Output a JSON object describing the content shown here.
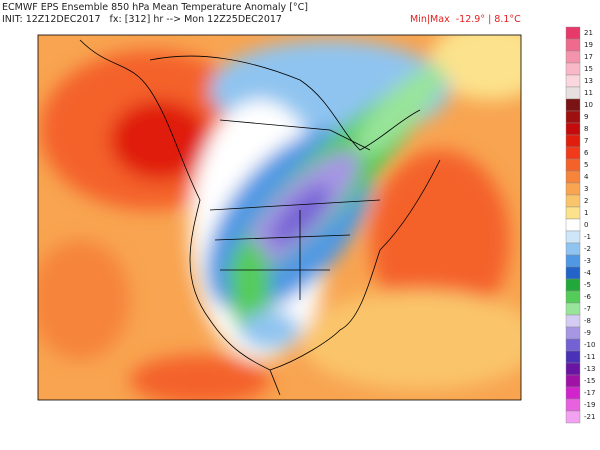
{
  "header": {
    "title": "ECMWF EPS Ensemble 850 hPa Mean Temperature Anomaly [°C]",
    "init": "INIT: 12Z12DEC2017   fx: [312] hr --> Mon 12Z25DEC2017",
    "minmax": "Min|Max  -12.9° | 8.1°C"
  },
  "legend": {
    "levels": [
      {
        "value": 21,
        "color": "#e83a6a"
      },
      {
        "value": 19,
        "color": "#f06a8e"
      },
      {
        "value": 17,
        "color": "#f494ac"
      },
      {
        "value": 15,
        "color": "#f8b8c8"
      },
      {
        "value": 13,
        "color": "#fad6de"
      },
      {
        "value": 11,
        "color": "#e8e0e0"
      },
      {
        "value": 10,
        "color": "#7a1414"
      },
      {
        "value": 9,
        "color": "#9e1010"
      },
      {
        "value": 8,
        "color": "#c40a0a"
      },
      {
        "value": 7,
        "color": "#e01e0e"
      },
      {
        "value": 6,
        "color": "#f03a1a"
      },
      {
        "value": 5,
        "color": "#f4622a"
      },
      {
        "value": 4,
        "color": "#f6843a"
      },
      {
        "value": 3,
        "color": "#f8a450"
      },
      {
        "value": 2,
        "color": "#fac46a"
      },
      {
        "value": 1,
        "color": "#fce28c"
      },
      {
        "value": 0,
        "color": "#ffffff"
      },
      {
        "value": -1,
        "color": "#cfe6f8"
      },
      {
        "value": -2,
        "color": "#8fc4f0"
      },
      {
        "value": -3,
        "color": "#4f98e4"
      },
      {
        "value": -4,
        "color": "#2264c8"
      },
      {
        "value": -5,
        "color": "#22a83a"
      },
      {
        "value": -6,
        "color": "#54cc5a"
      },
      {
        "value": -7,
        "color": "#98e49a"
      },
      {
        "value": -8,
        "color": "#d4ccf2"
      },
      {
        "value": -9,
        "color": "#a696e4"
      },
      {
        "value": -10,
        "color": "#7462d4"
      },
      {
        "value": -11,
        "color": "#4a32b8"
      },
      {
        "value": -13,
        "color": "#6a14a4"
      },
      {
        "value": -15,
        "color": "#a012a6"
      },
      {
        "value": -17,
        "color": "#d224cc"
      },
      {
        "value": -19,
        "color": "#e662de"
      },
      {
        "value": -21,
        "color": "#f2a2f0"
      }
    ]
  }
}
